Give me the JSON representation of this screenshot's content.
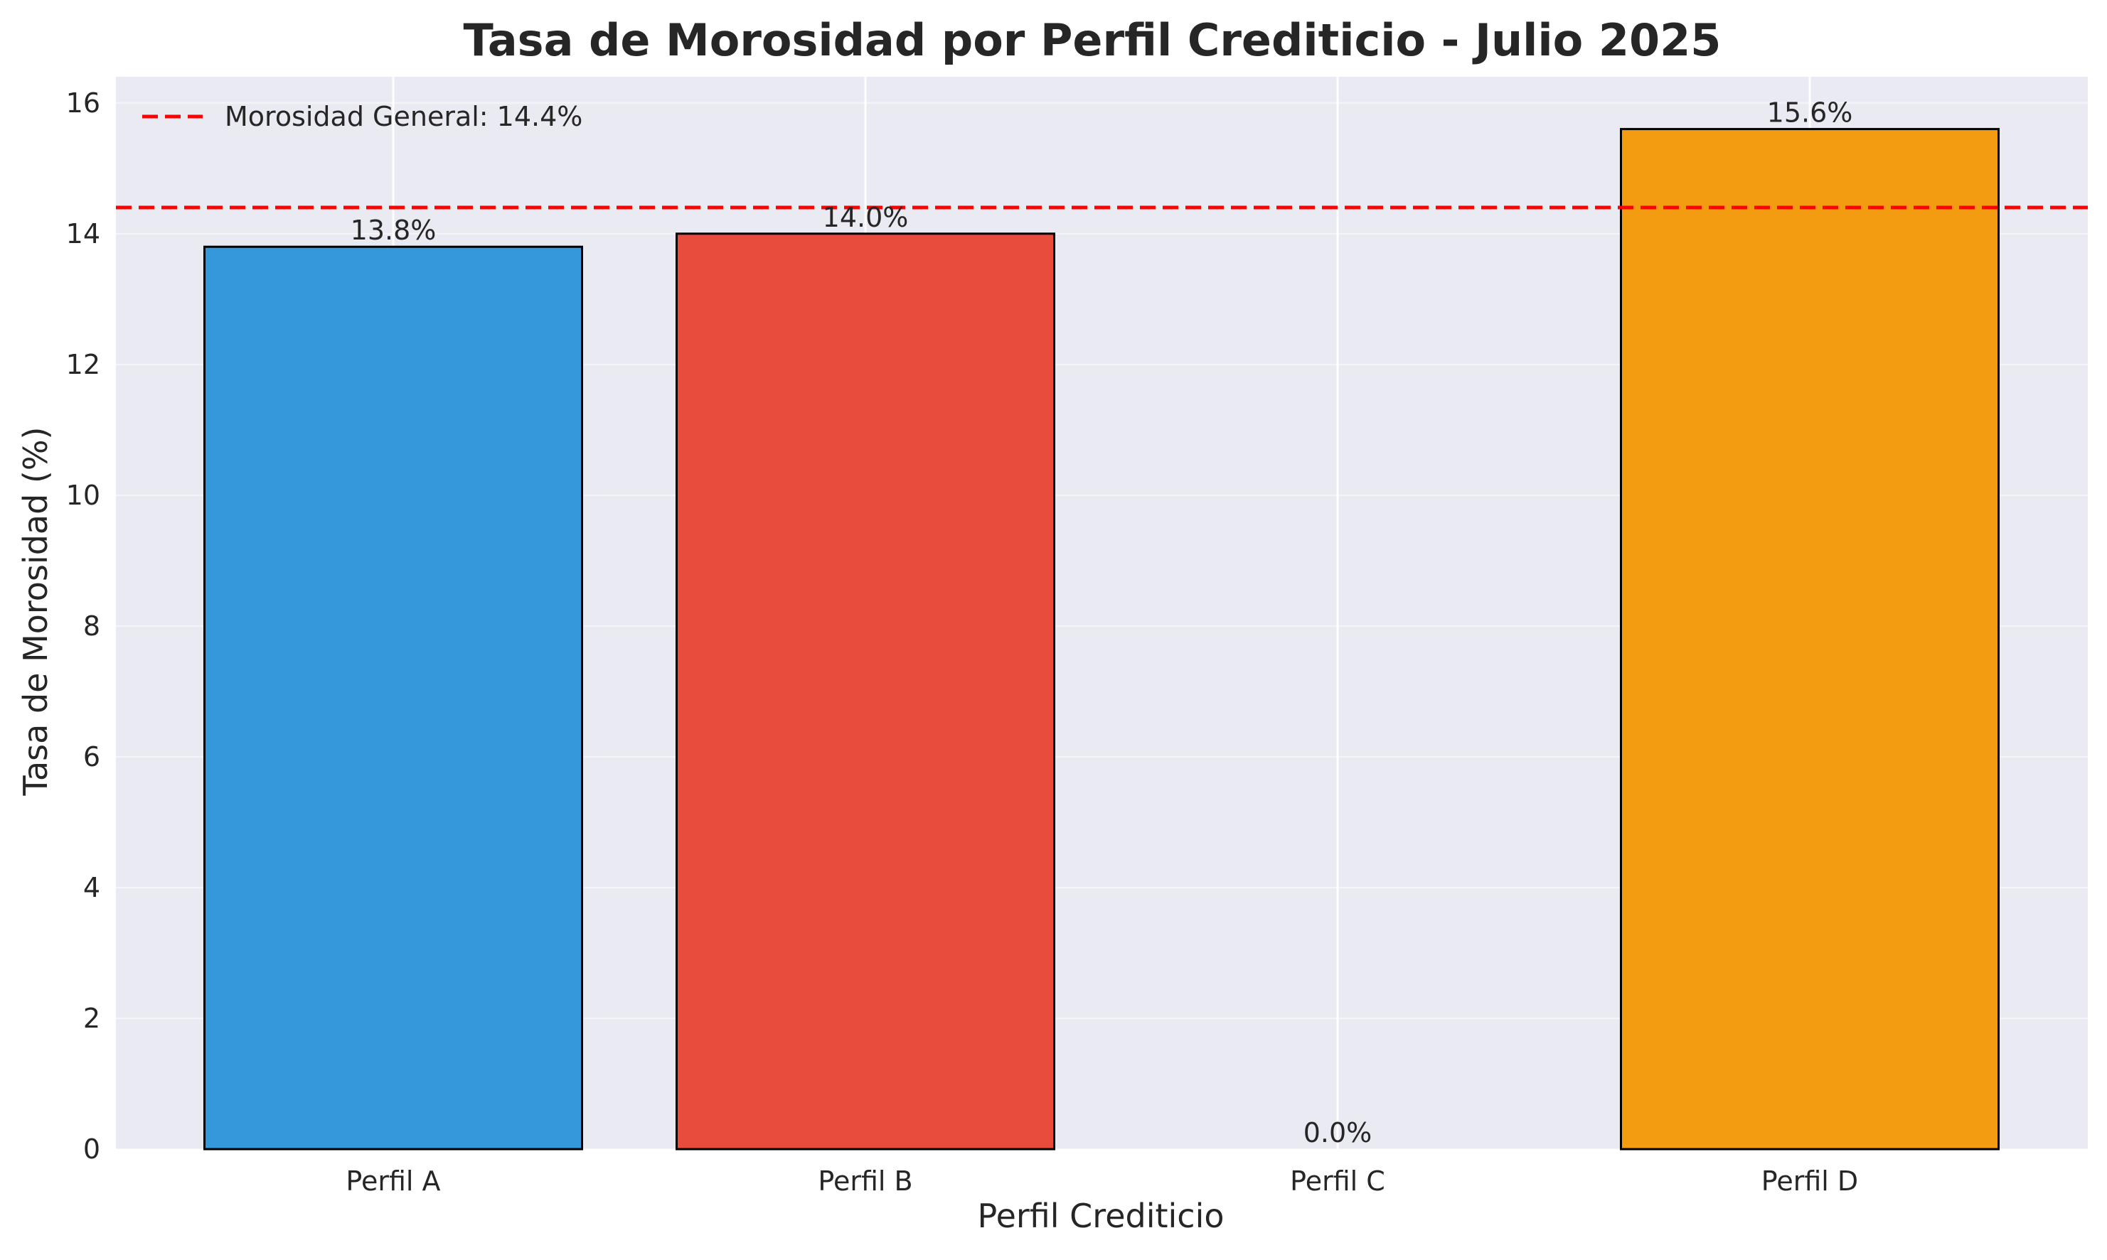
{
  "chart_data": {
    "type": "bar",
    "title": "Tasa de Morosidad por Perfil Crediticio - Julio 2025",
    "xlabel": "Perfil Crediticio",
    "ylabel": "Tasa de Morosidad (%)",
    "categories": [
      "Perfil A",
      "Perfil B",
      "Perfil C",
      "Perfil D"
    ],
    "values": [
      13.8,
      14.0,
      0.0,
      15.6
    ],
    "value_labels": [
      "13.8%",
      "14.0%",
      "0.0%",
      "15.6%"
    ],
    "bar_colors": [
      "#3498db",
      "#e74c3c",
      "#2ecc71",
      "#f39c12"
    ],
    "ylim": [
      0,
      16.4
    ],
    "yticks": [
      0,
      2,
      4,
      6,
      8,
      10,
      12,
      14,
      16
    ],
    "grid": true,
    "reference_line": {
      "value": 14.4,
      "label": "Morosidad General: 14.4%",
      "color": "#ff0000",
      "style": "dashed"
    },
    "legend_position": "top-left"
  }
}
